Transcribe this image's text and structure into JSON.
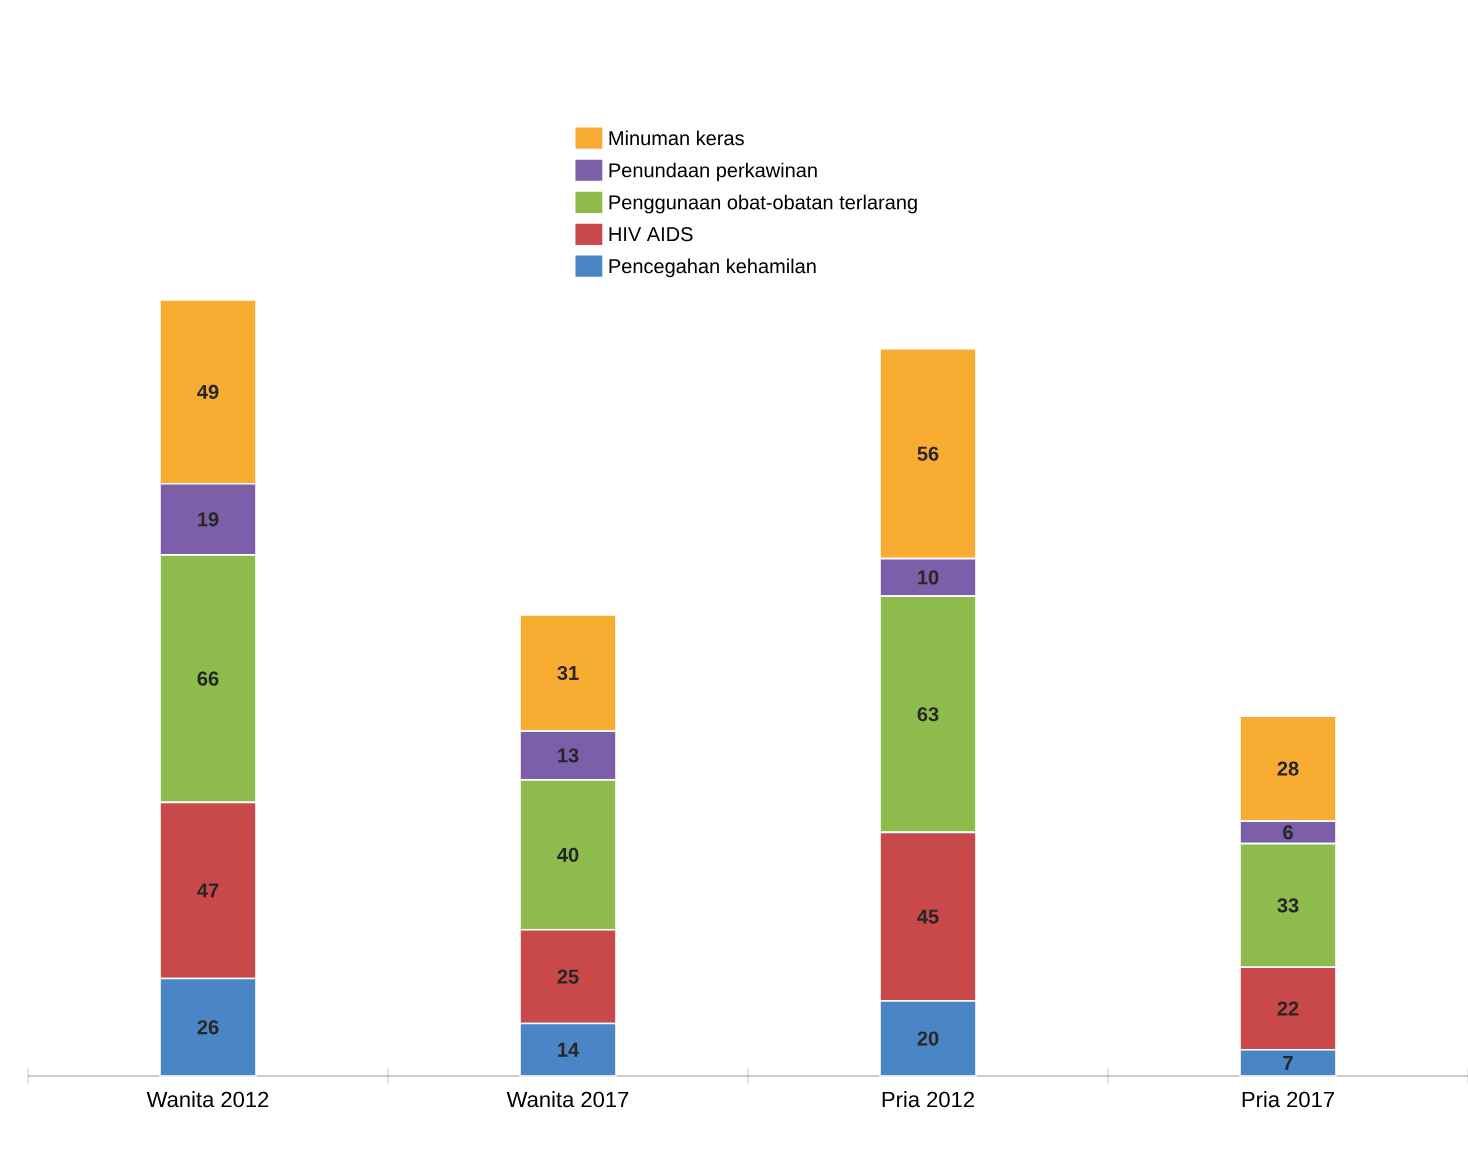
{
  "chart_data": {
    "type": "bar",
    "stacked": true,
    "data_labels": true,
    "legend": "top",
    "categories": [
      "Wanita 2012",
      "Wanita 2017",
      "Pria 2012",
      "Pria 2017"
    ],
    "series": [
      {
        "name": "Pencegahan kehamilan",
        "color": "#4a86c5",
        "values": [
          26,
          14,
          20,
          7
        ]
      },
      {
        "name": "HIV AIDS",
        "color": "#c9484a",
        "values": [
          47,
          25,
          45,
          22
        ]
      },
      {
        "name": "Penggunaan obat-obatan terlarang",
        "color": "#8dbb4c",
        "values": [
          66,
          40,
          63,
          33
        ]
      },
      {
        "name": "Penundaan perkawinan",
        "color": "#7d5ea8",
        "values": [
          19,
          13,
          10,
          6
        ]
      },
      {
        "name": "Minuman keras",
        "color": "#f9ac32",
        "values": [
          49,
          31,
          56,
          28
        ]
      }
    ]
  }
}
